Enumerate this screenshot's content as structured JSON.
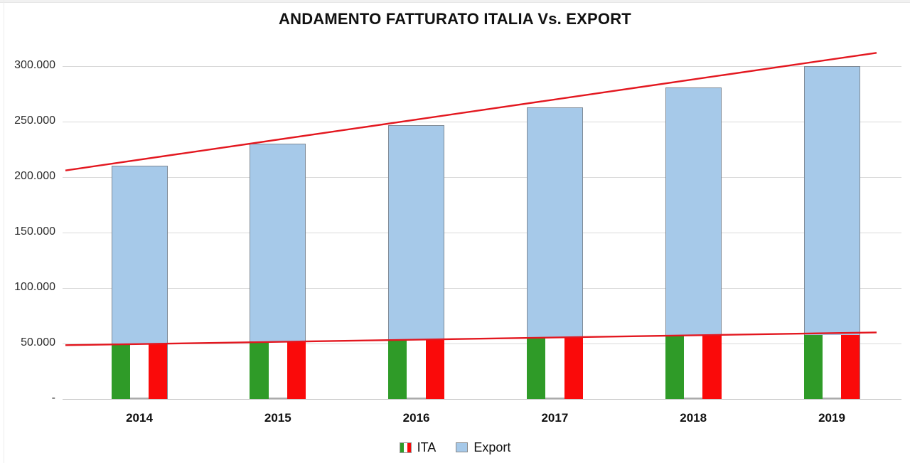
{
  "chart_data": {
    "type": "bar",
    "title": "ANDAMENTO FATTURATO ITALIA Vs. EXPORT",
    "categories": [
      "2014",
      "2015",
      "2016",
      "2017",
      "2018",
      "2019"
    ],
    "series": [
      {
        "name": "ITA",
        "style": "italian-flag",
        "values": [
          50000,
          52000,
          54000,
          56000,
          57000,
          58000
        ]
      },
      {
        "name": "Export",
        "style": "solid",
        "values": [
          210000,
          230000,
          247000,
          263000,
          281000,
          300000
        ]
      }
    ],
    "trendlines": [
      {
        "series": "Export",
        "start_value": 206000,
        "end_value": 312000
      },
      {
        "series": "ITA",
        "start_value": 48500,
        "end_value": 60000
      }
    ],
    "y_axis": {
      "min": 0,
      "max": 300000,
      "tick_step": 50000,
      "tick_labels": [
        "-",
        "50.000",
        "100.000",
        "150.000",
        "200.000",
        "250.000",
        "300.000"
      ]
    },
    "grid": "horizontal",
    "legend_position": "bottom",
    "colors": {
      "flag_green": "#2f9b28",
      "flag_white": "#ffffff",
      "flag_red": "#fa0a0a",
      "export_fill": "#a6c9e9",
      "bar_border": "#7f8a96",
      "gridline": "#d9d9d9",
      "trendline": "#e3171f"
    }
  }
}
